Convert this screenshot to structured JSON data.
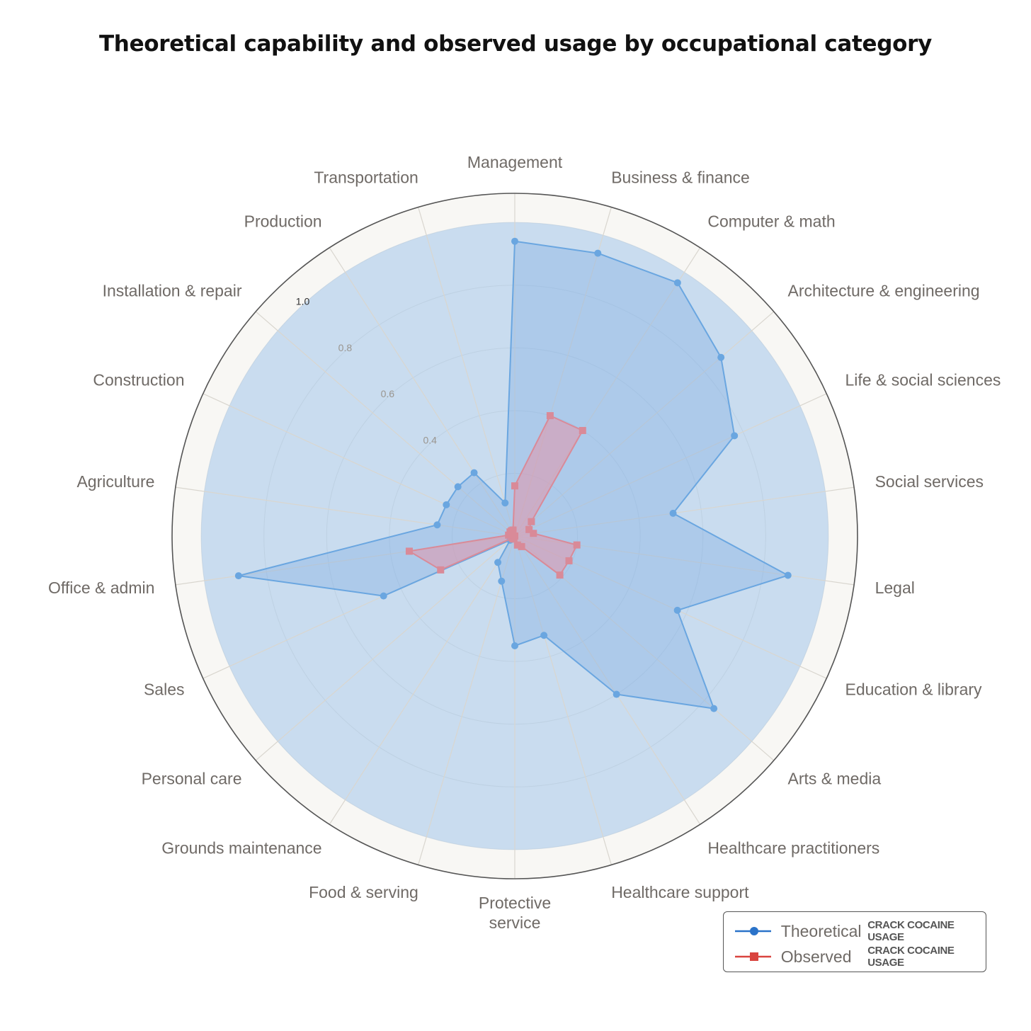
{
  "chart_data": {
    "type": "radar",
    "title": "Theoretical capability and observed usage by occupational category",
    "categories": [
      "Management",
      "Business & finance",
      "Computer & math",
      "Architecture & engineering",
      "Life & social sciences",
      "Social services",
      "Legal",
      "Education & library",
      "Arts & media",
      "Healthcare practitioners",
      "Healthcare support",
      "Protective service",
      "Food & serving",
      "Grounds maintenance",
      "Personal care",
      "Sales",
      "Office & admin",
      "Agriculture",
      "Construction",
      "Installation & repair",
      "Production",
      "Transportation"
    ],
    "radial_ticks": [
      "0.4",
      "0.6",
      "0.8",
      "1.0"
    ],
    "rlim": [
      0,
      1
    ],
    "grid": true,
    "legend_position": "bottom-right",
    "series": [
      {
        "name": "Theoretical",
        "legend_note": "CRACK COCAINE USAGE",
        "color": "#4a90d9",
        "marker": "circle",
        "values": [
          0.94,
          0.94,
          0.96,
          0.87,
          0.77,
          0.51,
          0.88,
          0.57,
          0.84,
          0.6,
          0.33,
          0.35,
          0.15,
          0.1,
          0.02,
          0.46,
          0.89,
          0.25,
          0.24,
          0.24,
          0.24,
          0.11
        ]
      },
      {
        "name": "Observed",
        "legend_note": "CRACK COCAINE USAGE",
        "color": "#d9534f",
        "marker": "square",
        "values": [
          0.16,
          0.4,
          0.4,
          0.07,
          0.05,
          0.06,
          0.2,
          0.19,
          0.19,
          0.04,
          0.03,
          0.0,
          0.01,
          0.01,
          0.01,
          0.26,
          0.34,
          0.02,
          0.01,
          0.02,
          0.02,
          0.02
        ]
      }
    ]
  }
}
